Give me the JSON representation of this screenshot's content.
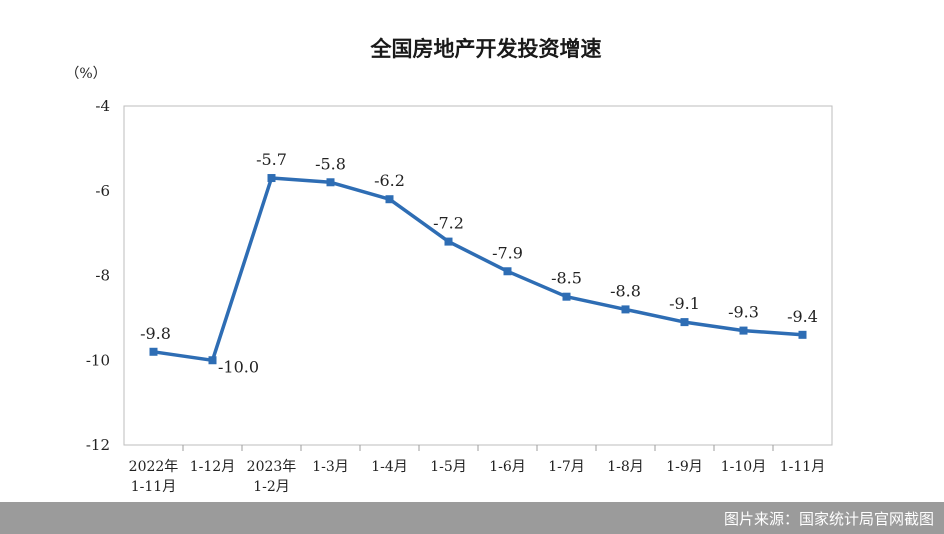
{
  "chart_data": {
    "type": "line",
    "title": "全国房地产开发投资增速",
    "ylabel": "（%）",
    "xlabel": "",
    "ylim": [
      -12,
      -4
    ],
    "yticks": [
      -4,
      -6,
      -8,
      -10,
      -12
    ],
    "grid": false,
    "categories": [
      [
        "2022年",
        "1-11月"
      ],
      [
        "1-12月"
      ],
      [
        "2023年",
        "1-2月"
      ],
      [
        "1-3月"
      ],
      [
        "1-4月"
      ],
      [
        "1-5月"
      ],
      [
        "1-6月"
      ],
      [
        "1-7月"
      ],
      [
        "1-8月"
      ],
      [
        "1-9月"
      ],
      [
        "1-10月"
      ],
      [
        "1-11月"
      ]
    ],
    "series": [
      {
        "values": [
          -9.8,
          -10.0,
          -5.7,
          -5.8,
          -6.2,
          -7.2,
          -7.9,
          -8.5,
          -8.8,
          -9.1,
          -9.3,
          -9.4
        ],
        "labels": [
          "-9.8",
          "-10.0",
          "-5.7",
          "-5.8",
          "-6.2",
          "-7.2",
          "-7.9",
          "-8.5",
          "-8.8",
          "-9.1",
          "-9.3",
          "-9.4"
        ],
        "color": "#2e6db4"
      }
    ]
  },
  "credit": "图片来源：国家统计局官网截图"
}
